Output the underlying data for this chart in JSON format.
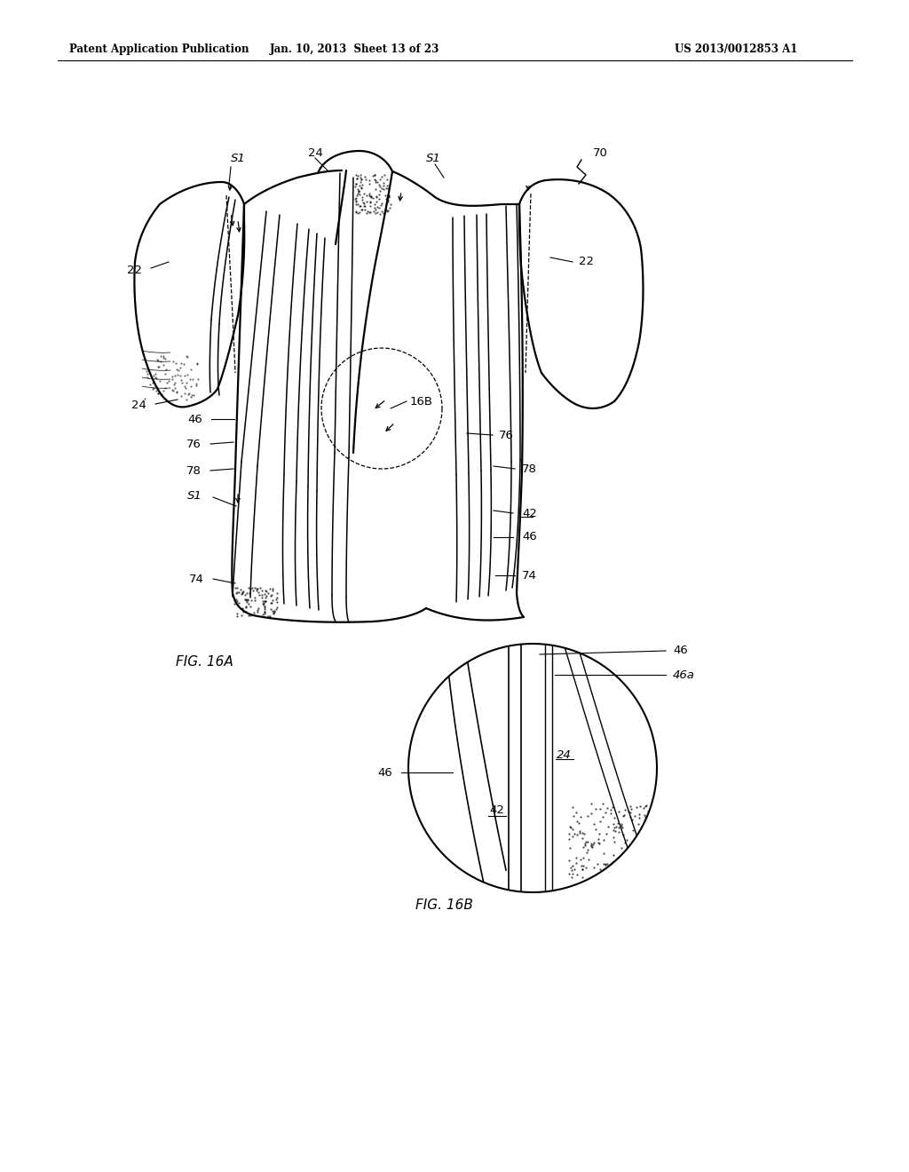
{
  "header_left": "Patent Application Publication",
  "header_mid": "Jan. 10, 2013  Sheet 13 of 23",
  "header_right": "US 2013/0012853 A1",
  "fig_label_a": "FIG. 16A",
  "fig_label_b": "FIG. 16B",
  "bg_color": "#ffffff",
  "line_color": "#000000"
}
